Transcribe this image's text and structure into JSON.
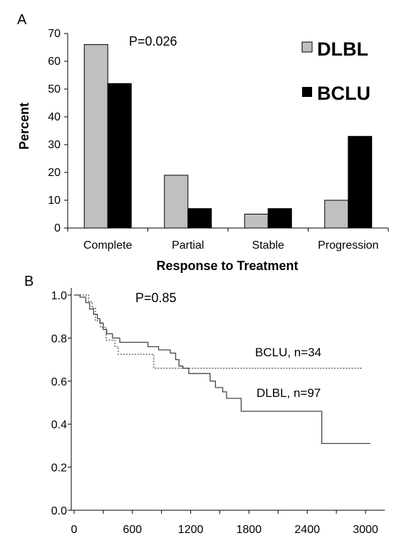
{
  "chart_data": [
    {
      "type": "bar",
      "panel_label": "A",
      "annotation": "P=0.026",
      "title": "",
      "xlabel": "Response to Treatment",
      "ylabel": "Percent",
      "ylim": [
        0,
        70
      ],
      "yticks": [
        "0",
        "10",
        "20",
        "30",
        "40",
        "50",
        "60",
        "70"
      ],
      "categories": [
        "Complete",
        "Partial",
        "Stable",
        "Progression"
      ],
      "series": [
        {
          "name": "DLBL",
          "color": "#c0c0c0",
          "values": [
            66,
            19,
            5,
            10
          ]
        },
        {
          "name": "BCLU",
          "color": "#000000",
          "values": [
            52,
            7,
            7,
            33
          ]
        }
      ],
      "legend_placement": "top-right",
      "grid": false
    },
    {
      "type": "line",
      "subtype": "step (Kaplan-Meier survival)",
      "panel_label": "B",
      "annotation": "P=0.85",
      "title": "",
      "xlabel": "",
      "ylabel": "",
      "xlim": [
        0,
        3100
      ],
      "ylim": [
        0,
        1.05
      ],
      "xticks": [
        "0",
        "600",
        "1200",
        "1800",
        "2400",
        "3000"
      ],
      "yticks": [
        "0.0",
        "0.2",
        "0.4",
        "0.6",
        "0.8",
        "1.0"
      ],
      "grid": false,
      "series": [
        {
          "name": "BCLU, n=34",
          "style": "dotted",
          "color": "#555555",
          "points": [
            [
              0,
              1.0
            ],
            [
              60,
              1.0
            ],
            [
              150,
              1.0
            ],
            [
              150,
              0.97
            ],
            [
              185,
              0.97
            ],
            [
              185,
              0.94
            ],
            [
              220,
              0.94
            ],
            [
              220,
              0.88
            ],
            [
              270,
              0.88
            ],
            [
              270,
              0.85
            ],
            [
              330,
              0.85
            ],
            [
              330,
              0.79
            ],
            [
              420,
              0.79
            ],
            [
              420,
              0.76
            ],
            [
              455,
              0.76
            ],
            [
              455,
              0.725
            ],
            [
              820,
              0.725
            ],
            [
              820,
              0.66
            ],
            [
              2960,
              0.66
            ]
          ]
        },
        {
          "name": "DLBL, n=97",
          "style": "solid",
          "color": "#444444",
          "points": [
            [
              0,
              1.0
            ],
            [
              60,
              1.0
            ],
            [
              60,
              0.99
            ],
            [
              120,
              0.99
            ],
            [
              120,
              0.965
            ],
            [
              160,
              0.965
            ],
            [
              160,
              0.935
            ],
            [
              200,
              0.935
            ],
            [
              200,
              0.91
            ],
            [
              240,
              0.91
            ],
            [
              240,
              0.89
            ],
            [
              265,
              0.89
            ],
            [
              265,
              0.87
            ],
            [
              300,
              0.87
            ],
            [
              300,
              0.84
            ],
            [
              335,
              0.84
            ],
            [
              335,
              0.82
            ],
            [
              395,
              0.82
            ],
            [
              395,
              0.8
            ],
            [
              470,
              0.8
            ],
            [
              470,
              0.78
            ],
            [
              760,
              0.78
            ],
            [
              760,
              0.76
            ],
            [
              870,
              0.76
            ],
            [
              870,
              0.745
            ],
            [
              990,
              0.745
            ],
            [
              990,
              0.73
            ],
            [
              1045,
              0.73
            ],
            [
              1045,
              0.7
            ],
            [
              1080,
              0.7
            ],
            [
              1080,
              0.67
            ],
            [
              1120,
              0.67
            ],
            [
              1120,
              0.66
            ],
            [
              1180,
              0.66
            ],
            [
              1180,
              0.635
            ],
            [
              1400,
              0.635
            ],
            [
              1400,
              0.6
            ],
            [
              1455,
              0.6
            ],
            [
              1455,
              0.57
            ],
            [
              1530,
              0.57
            ],
            [
              1530,
              0.55
            ],
            [
              1570,
              0.55
            ],
            [
              1570,
              0.52
            ],
            [
              1720,
              0.52
            ],
            [
              1720,
              0.46
            ],
            [
              2550,
              0.46
            ],
            [
              2550,
              0.31
            ],
            [
              3050,
              0.31
            ]
          ]
        }
      ]
    }
  ]
}
